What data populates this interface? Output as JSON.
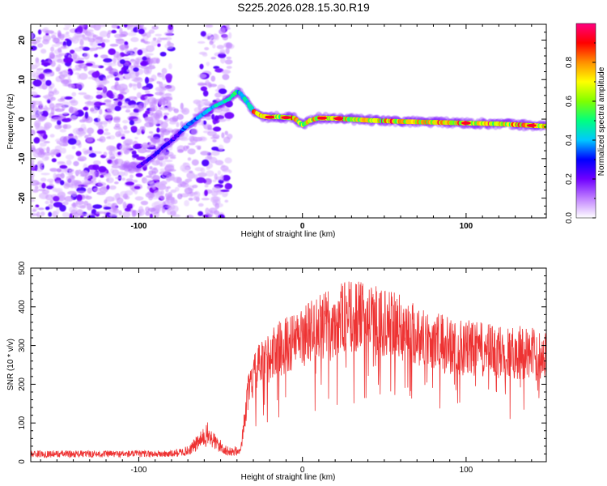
{
  "title": "S225.2026.028.15.30.R19",
  "chart_data": [
    {
      "type": "heatmap",
      "name": "spectrogram",
      "xlabel": "Height of straight line (km)",
      "ylabel": "Frequency (Hz)",
      "xlim": [
        -166,
        149
      ],
      "ylim": [
        -25,
        24
      ],
      "xticks": [
        -100,
        0,
        100
      ],
      "yticks": [
        -20,
        -10,
        0,
        10,
        20
      ],
      "xtick_labels": [
        "-100",
        "0",
        "100"
      ],
      "ytick_labels": [
        "-20",
        "-10",
        "0",
        "10",
        "20"
      ],
      "ridge": {
        "x": [
          -100,
          -90,
          -85,
          -80,
          -75,
          -70,
          -65,
          -60,
          -55,
          -50,
          -45,
          -40,
          -38,
          -35,
          -30,
          -25,
          -20,
          -15,
          -10,
          -5,
          0,
          5,
          10,
          20,
          40,
          60,
          80,
          100,
          120,
          140,
          149
        ],
        "y": [
          -12,
          -9,
          -7,
          -5.5,
          -3.5,
          -1.5,
          0,
          1.5,
          3,
          4,
          5,
          7,
          6.5,
          5,
          2,
          0.8,
          0.5,
          0.6,
          0.4,
          0.3,
          -1.5,
          -0.3,
          0.3,
          0.2,
          -0.3,
          -0.6,
          -0.8,
          -1.0,
          -1.2,
          -1.6,
          -1.8
        ]
      }
    },
    {
      "type": "line",
      "name": "snr",
      "xlabel": "Height of straight line (km)",
      "ylabel": "SNR (10 * v/v)",
      "xlim": [
        -166,
        149
      ],
      "ylim": [
        0,
        500
      ],
      "xticks": [
        -100,
        0,
        100
      ],
      "yticks": [
        0,
        100,
        200,
        300,
        400,
        500
      ],
      "xtick_labels": [
        "-100",
        "0",
        "100"
      ],
      "ytick_labels": [
        "0",
        "100",
        "200",
        "300",
        "400",
        "500"
      ],
      "series": [
        {
          "name": "SNR",
          "color": "#ee3333",
          "envelope_x": [
            -166,
            -80,
            -70,
            -62,
            -58,
            -52,
            -45,
            -38,
            -33,
            -28,
            -22,
            -15,
            -5,
            5,
            15,
            25,
            35,
            45,
            60,
            75,
            90,
            105,
            120,
            135,
            149
          ],
          "envelope_y": [
            20,
            20,
            28,
            55,
            70,
            45,
            25,
            30,
            200,
            260,
            290,
            320,
            340,
            370,
            390,
            410,
            410,
            400,
            380,
            350,
            330,
            320,
            310,
            310,
            300
          ]
        }
      ]
    }
  ],
  "colorbar": {
    "label": "Normalized spectral amplitude",
    "ticks": [
      "0.0",
      "0.2",
      "0.4",
      "0.6",
      "0.8"
    ],
    "tick_values": [
      0.0,
      0.2,
      0.4,
      0.6,
      0.8
    ],
    "range": [
      0,
      1
    ],
    "colors": [
      "#ffffff",
      "#c080ff",
      "#7000ff",
      "#0000ff",
      "#00c8ff",
      "#00ff80",
      "#80ff00",
      "#ffff00",
      "#ff9000",
      "#ff0000",
      "#ff0080"
    ]
  }
}
